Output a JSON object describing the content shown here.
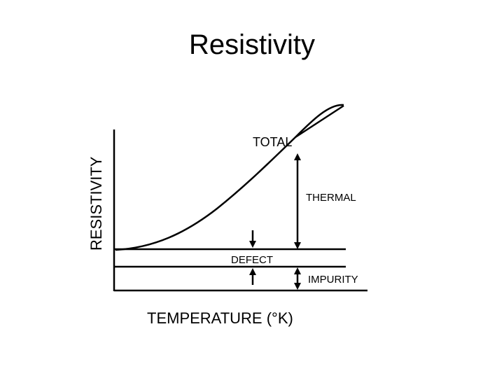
{
  "title": "Resistivity",
  "axes": {
    "y_label": "RESISTIVITY",
    "x_label": "TEMPERATURE (°K)"
  },
  "labels": {
    "total": "TOTAL",
    "thermal": "THERMAL",
    "defect": "DEFECT",
    "impurity": "IMPURITY"
  },
  "colors": {
    "ink": "#000000",
    "background": "#ffffff"
  }
}
